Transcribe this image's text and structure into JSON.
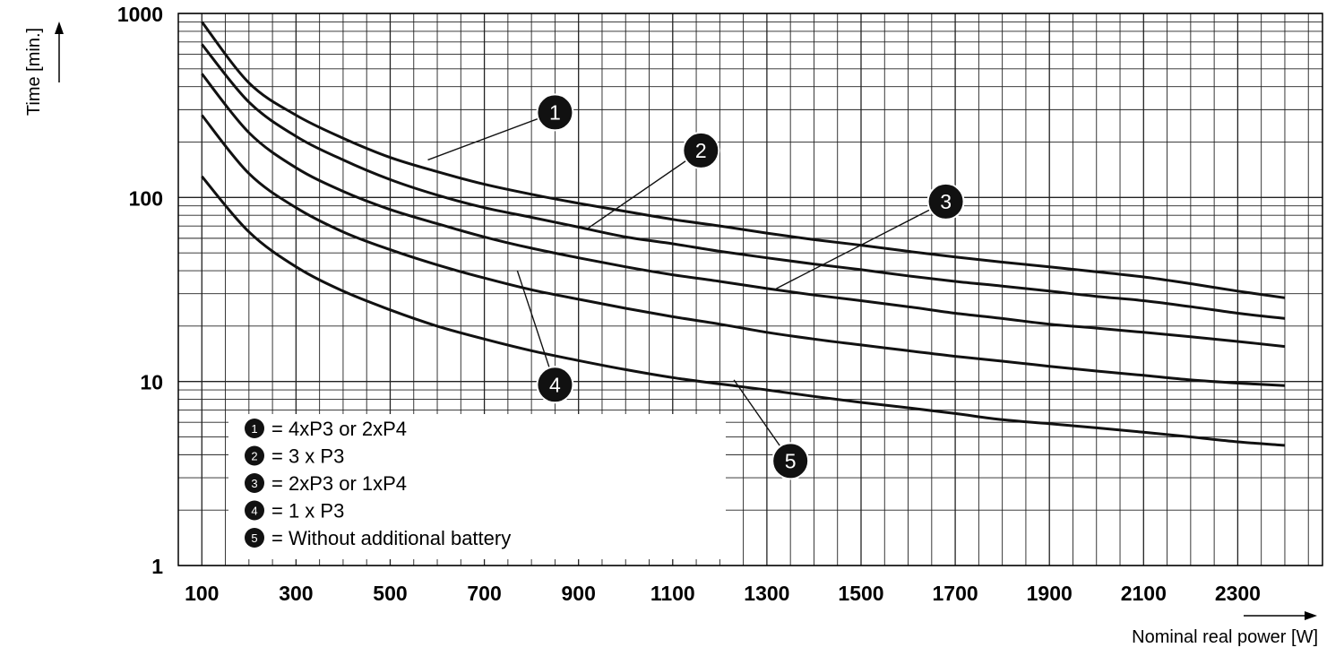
{
  "chart_data": {
    "type": "line",
    "xlabel": "Nominal real power [W]",
    "ylabel": "Time [min.]",
    "x_scale": "linear",
    "y_scale": "log",
    "xlim": [
      50,
      2480
    ],
    "ylim": [
      1,
      1000
    ],
    "grid": true,
    "x_ticks": [
      "100",
      "300",
      "500",
      "700",
      "900",
      "1100",
      "1300",
      "1500",
      "1700",
      "1900",
      "2100",
      "2300"
    ],
    "y_ticks": [
      "1",
      "10",
      "100",
      "1000"
    ],
    "legend_position": "bottom-left",
    "legend": [
      {
        "num": "1",
        "label": "= 4xP3 or 2xP4"
      },
      {
        "num": "2",
        "label": "= 3 x P3"
      },
      {
        "num": "3",
        "label": "= 2xP3 or 1xP4"
      },
      {
        "num": "4",
        "label": "= 1 x P3"
      },
      {
        "num": "5",
        "label": "= Without additional battery"
      }
    ],
    "series": [
      {
        "name": "1",
        "x": [
          100,
          200,
          300,
          400,
          500,
          600,
          700,
          800,
          900,
          1000,
          1100,
          1200,
          1300,
          1400,
          1500,
          1600,
          1700,
          1800,
          1900,
          2000,
          2100,
          2200,
          2300,
          2400
        ],
        "y": [
          900,
          420,
          280,
          210,
          165,
          138,
          118,
          104,
          93,
          84,
          76,
          70,
          64,
          59,
          55,
          51,
          47.5,
          44.5,
          42,
          39.5,
          37,
          34,
          31,
          28.5
        ]
      },
      {
        "name": "2",
        "x": [
          100,
          200,
          300,
          400,
          500,
          600,
          700,
          800,
          900,
          1000,
          1100,
          1200,
          1300,
          1400,
          1500,
          1600,
          1700,
          1800,
          1900,
          2000,
          2100,
          2200,
          2300,
          2400
        ],
        "y": [
          680,
          330,
          215,
          160,
          125,
          103,
          88,
          78,
          69,
          61,
          56,
          51,
          47,
          43.5,
          40.5,
          37.5,
          35,
          33,
          31,
          29,
          27.5,
          25.5,
          23.5,
          22
        ]
      },
      {
        "name": "3",
        "x": [
          100,
          200,
          300,
          400,
          500,
          600,
          700,
          800,
          900,
          1000,
          1100,
          1200,
          1300,
          1400,
          1500,
          1600,
          1700,
          1800,
          1900,
          2000,
          2100,
          2200,
          2300,
          2400
        ],
        "y": [
          470,
          225,
          145,
          108,
          86,
          72,
          61,
          53,
          47,
          42,
          38,
          35,
          32,
          29.5,
          27.5,
          25.5,
          23.5,
          22,
          20.5,
          19.5,
          18.5,
          17.5,
          16.5,
          15.5
        ]
      },
      {
        "name": "4",
        "x": [
          100,
          200,
          300,
          400,
          500,
          600,
          700,
          800,
          900,
          1000,
          1100,
          1200,
          1300,
          1400,
          1500,
          1600,
          1700,
          1800,
          1900,
          2000,
          2100,
          2200,
          2300,
          2400
        ],
        "y": [
          280,
          135,
          88,
          65,
          52,
          43,
          36.5,
          31.5,
          28,
          25,
          22.5,
          20.5,
          18.5,
          17,
          15.8,
          14.7,
          13.7,
          12.9,
          12.1,
          11.4,
          10.8,
          10.2,
          9.8,
          9.5
        ]
      },
      {
        "name": "5",
        "x": [
          100,
          200,
          300,
          400,
          500,
          600,
          700,
          800,
          900,
          1000,
          1100,
          1200,
          1300,
          1400,
          1500,
          1600,
          1700,
          1800,
          1900,
          2000,
          2100,
          2200,
          2300,
          2400
        ],
        "y": [
          130,
          65,
          42,
          31,
          24.5,
          20,
          17,
          14.7,
          13,
          11.6,
          10.5,
          9.7,
          9,
          8.3,
          7.7,
          7.2,
          6.7,
          6.2,
          5.9,
          5.6,
          5.3,
          5.0,
          4.7,
          4.5
        ]
      }
    ],
    "callouts": [
      {
        "num": "1",
        "target_x": 580,
        "target_y": 160,
        "label_x": 850,
        "label_y": 290
      },
      {
        "num": "2",
        "target_x": 920,
        "target_y": 68,
        "label_x": 1160,
        "label_y": 180
      },
      {
        "num": "3",
        "target_x": 1320,
        "target_y": 32,
        "label_x": 1680,
        "label_y": 95
      },
      {
        "num": "4",
        "target_x": 770,
        "target_y": 40,
        "label_x": 850,
        "label_y": 9.6
      },
      {
        "num": "5",
        "target_x": 1230,
        "target_y": 10.2,
        "label_x": 1350,
        "label_y": 3.7
      }
    ]
  }
}
